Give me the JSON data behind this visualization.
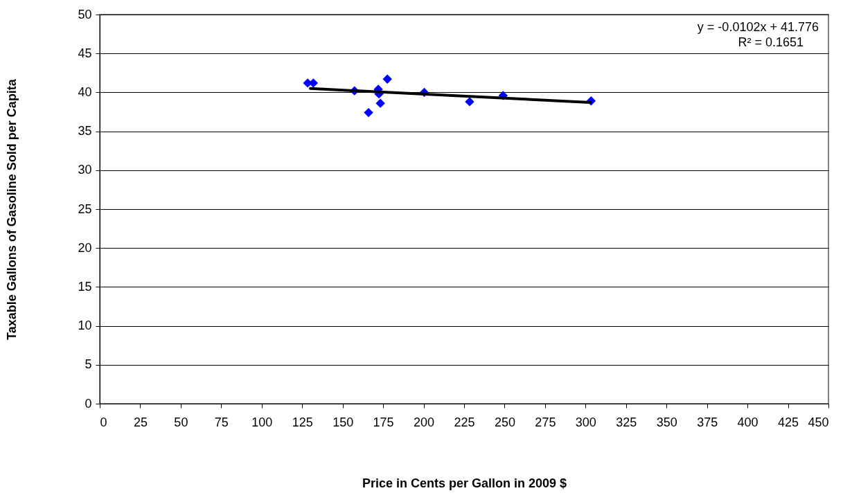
{
  "chart_data": {
    "type": "scatter",
    "xlabel": "Price in Cents per Gallon in 2009 $",
    "ylabel": "Taxable Gallons of Gasoline Sold per Capita",
    "xlim": [
      0,
      450
    ],
    "xticks": [
      0,
      25,
      50,
      75,
      100,
      125,
      150,
      175,
      200,
      225,
      250,
      275,
      300,
      325,
      350,
      375,
      400,
      425,
      450
    ],
    "ylim": [
      0,
      50
    ],
    "yticks": [
      0,
      5,
      10,
      15,
      20,
      25,
      30,
      35,
      40,
      45,
      50
    ],
    "grid": "y",
    "series": [
      {
        "color": "#0000ff",
        "marker": "diamond",
        "x": [
          128.4,
          131.9,
          157.3,
          166.0,
          172.0,
          172.4,
          173.3,
          177.6,
          200.4,
          228.4,
          249.1,
          303.4
        ],
        "values": [
          41.2,
          41.2,
          40.2,
          37.4,
          40.4,
          39.8,
          38.6,
          41.7,
          40.0,
          38.8,
          39.6,
          38.9
        ]
      },
      {
        "type": "line",
        "color": "#000000",
        "marker": "none",
        "x": [
          130,
          303
        ],
        "values": [
          40.5,
          38.7
        ]
      }
    ],
    "annotations": [
      "y = -0.0102x + 41.776",
      "R² = 0.1651"
    ]
  }
}
